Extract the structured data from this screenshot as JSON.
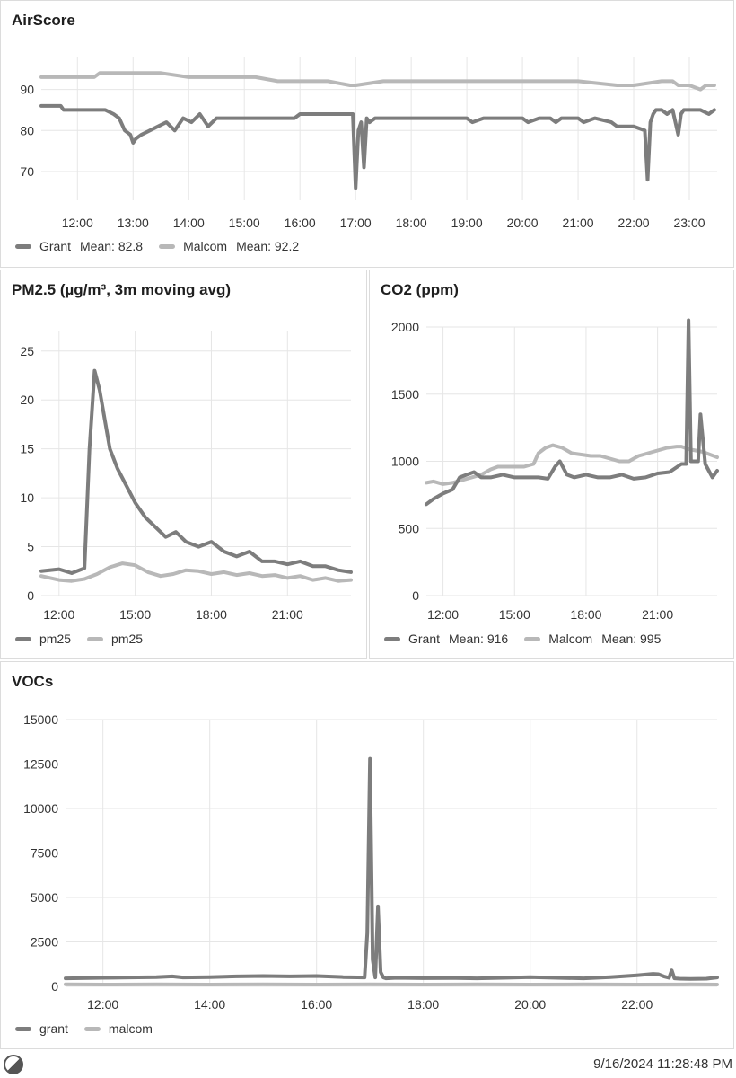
{
  "colors": {
    "dark": "#7d7d7d",
    "light": "#b8b8b8",
    "grid": "#e6e6e6",
    "text": "#333333"
  },
  "footer": {
    "timestamp": "9/16/2024 11:28:48 PM",
    "logo_icon": "half-circle-logo-icon"
  },
  "chart_data": [
    {
      "id": "air",
      "type": "line",
      "title": "AirScore",
      "x_ticks": [
        "12:00",
        "13:00",
        "14:00",
        "15:00",
        "16:00",
        "17:00",
        "18:00",
        "19:00",
        "20:00",
        "21:00",
        "22:00",
        "23:00"
      ],
      "y_ticks": [
        "70",
        "80",
        "90"
      ],
      "xlim": [
        11.35,
        23.5
      ],
      "ylim": [
        63,
        98
      ],
      "grid": true,
      "legend_position": "bottom",
      "legend": [
        {
          "name": "Grant",
          "mean": "Mean: 82.8"
        },
        {
          "name": "Malcom",
          "mean": "Mean: 92.2"
        }
      ],
      "series": [
        {
          "name": "Grant",
          "color": "#7d7d7d",
          "x": [
            11.35,
            11.7,
            11.75,
            12.5,
            12.65,
            12.75,
            12.85,
            12.95,
            13.0,
            13.05,
            13.15,
            13.3,
            13.45,
            13.6,
            13.75,
            13.9,
            14.05,
            14.2,
            14.35,
            14.5,
            14.6,
            15.2,
            15.9,
            16.0,
            16.8,
            16.95,
            17.0,
            17.05,
            17.1,
            17.15,
            17.2,
            17.25,
            17.35,
            17.5,
            17.8,
            19.0,
            19.1,
            19.3,
            20.0,
            20.1,
            20.3,
            20.5,
            20.6,
            20.7,
            21.0,
            21.1,
            21.3,
            21.6,
            21.7,
            22.0,
            22.2,
            22.25,
            22.3,
            22.35,
            22.4,
            22.5,
            22.6,
            22.7,
            22.8,
            22.85,
            22.9,
            23.0,
            23.2,
            23.35,
            23.45
          ],
          "values": [
            86,
            86,
            85,
            85,
            84,
            83,
            80,
            79,
            77,
            78,
            79,
            80,
            81,
            82,
            80,
            83,
            82,
            84,
            81,
            83,
            83,
            83,
            83,
            84,
            84,
            84,
            66,
            80,
            82,
            71,
            83,
            82,
            83,
            83,
            83,
            83,
            82,
            83,
            83,
            82,
            83,
            83,
            82,
            83,
            83,
            82,
            83,
            82,
            81,
            81,
            80,
            68,
            82,
            84,
            85,
            85,
            84,
            85,
            79,
            84,
            85,
            85,
            85,
            84,
            85
          ]
        },
        {
          "name": "Malcom",
          "color": "#b8b8b8",
          "x": [
            11.35,
            12.0,
            12.3,
            12.4,
            12.6,
            13.0,
            13.5,
            14.0,
            14.5,
            15.0,
            15.2,
            15.6,
            16.0,
            16.5,
            16.9,
            17.0,
            17.5,
            18.0,
            19.0,
            20.0,
            21.0,
            21.7,
            22.0,
            22.5,
            22.6,
            22.7,
            22.8,
            22.9,
            23.0,
            23.2,
            23.3,
            23.45
          ],
          "values": [
            93,
            93,
            93,
            94,
            94,
            94,
            94,
            93,
            93,
            93,
            93,
            92,
            92,
            92,
            91,
            91,
            92,
            92,
            92,
            92,
            92,
            91,
            91,
            92,
            92,
            92,
            91,
            91,
            91,
            90,
            91,
            91
          ]
        }
      ]
    },
    {
      "id": "pm",
      "type": "line",
      "title": "PM2.5 (µg/m³, 3m moving avg)",
      "x_ticks": [
        "12:00",
        "15:00",
        "18:00",
        "21:00"
      ],
      "y_ticks": [
        "0",
        "5",
        "10",
        "15",
        "20",
        "25"
      ],
      "xlim": [
        11.3,
        23.5
      ],
      "ylim": [
        0,
        27
      ],
      "grid": true,
      "legend_position": "bottom",
      "legend": [
        {
          "name": "pm25"
        },
        {
          "name": "pm25"
        }
      ],
      "series": [
        {
          "name": "pm25",
          "color": "#7d7d7d",
          "x": [
            11.3,
            12.0,
            12.5,
            13.0,
            13.2,
            13.4,
            13.6,
            13.8,
            14.0,
            14.3,
            14.6,
            15.0,
            15.4,
            15.8,
            16.2,
            16.6,
            17.0,
            17.5,
            18.0,
            18.5,
            19.0,
            19.5,
            20.0,
            20.5,
            21.0,
            21.5,
            22.0,
            22.5,
            23.0,
            23.5
          ],
          "values": [
            2.5,
            2.7,
            2.3,
            2.8,
            15,
            23,
            21,
            18,
            15,
            13,
            11.5,
            9.5,
            8,
            7,
            6,
            6.5,
            5.5,
            5,
            5.5,
            4.5,
            4,
            4.5,
            3.5,
            3.5,
            3.2,
            3.5,
            3,
            3,
            2.6,
            2.4
          ]
        },
        {
          "name": "pm25",
          "color": "#b8b8b8",
          "x": [
            11.3,
            12.0,
            12.5,
            13.0,
            13.5,
            14.0,
            14.5,
            15.0,
            15.5,
            16.0,
            16.5,
            17.0,
            17.5,
            18.0,
            18.5,
            19.0,
            19.5,
            20.0,
            20.5,
            21.0,
            21.5,
            22.0,
            22.5,
            23.0,
            23.5
          ],
          "values": [
            2,
            1.6,
            1.5,
            1.7,
            2.2,
            2.9,
            3.3,
            3.1,
            2.4,
            2,
            2.2,
            2.6,
            2.5,
            2.2,
            2.4,
            2.1,
            2.3,
            2,
            2.1,
            1.8,
            2,
            1.6,
            1.8,
            1.5,
            1.6
          ]
        }
      ]
    },
    {
      "id": "co2",
      "type": "line",
      "title": "CO2 (ppm)",
      "x_ticks": [
        "12:00",
        "15:00",
        "18:00",
        "21:00"
      ],
      "y_ticks": [
        "0",
        "500",
        "1000",
        "1500",
        "2000"
      ],
      "xlim": [
        11.3,
        23.5
      ],
      "ylim": [
        0,
        2000
      ],
      "grid": true,
      "legend_position": "bottom",
      "legend": [
        {
          "name": "Grant",
          "mean": "Mean: 916"
        },
        {
          "name": "Malcom",
          "mean": "Mean: 995"
        }
      ],
      "series": [
        {
          "name": "Grant",
          "color": "#7d7d7d",
          "x": [
            11.3,
            11.6,
            12.0,
            12.4,
            12.7,
            13.0,
            13.3,
            13.6,
            14.0,
            14.5,
            15.0,
            15.5,
            16.0,
            16.4,
            16.7,
            16.9,
            17.2,
            17.5,
            18.0,
            18.5,
            19.0,
            19.5,
            20.0,
            20.5,
            21.0,
            21.5,
            22.0,
            22.2,
            22.3,
            22.4,
            22.5,
            22.6,
            22.7,
            22.8,
            23.0,
            23.3,
            23.5
          ],
          "values": [
            680,
            720,
            760,
            790,
            880,
            900,
            920,
            880,
            880,
            900,
            880,
            880,
            880,
            870,
            960,
            1000,
            900,
            880,
            900,
            880,
            880,
            900,
            870,
            880,
            910,
            920,
            980,
            980,
            2050,
            1000,
            1000,
            1000,
            1000,
            1350,
            980,
            880,
            930
          ]
        },
        {
          "name": "Malcom",
          "color": "#b8b8b8",
          "x": [
            11.3,
            11.6,
            12.0,
            12.4,
            12.8,
            13.2,
            13.6,
            14.0,
            14.3,
            14.6,
            15.0,
            15.4,
            15.8,
            16.0,
            16.3,
            16.6,
            17.0,
            17.4,
            17.8,
            18.2,
            18.6,
            19.0,
            19.4,
            19.8,
            20.2,
            20.6,
            21.0,
            21.4,
            21.8,
            22.0,
            22.3,
            22.6,
            22.9,
            23.2,
            23.5
          ],
          "values": [
            840,
            850,
            830,
            840,
            860,
            880,
            900,
            940,
            960,
            960,
            960,
            960,
            980,
            1060,
            1100,
            1120,
            1100,
            1060,
            1050,
            1040,
            1040,
            1020,
            1000,
            1000,
            1040,
            1060,
            1080,
            1100,
            1110,
            1110,
            1090,
            1080,
            1070,
            1050,
            1030
          ]
        }
      ]
    },
    {
      "id": "voc",
      "type": "line",
      "title": "VOCs",
      "x_ticks": [
        "12:00",
        "14:00",
        "16:00",
        "18:00",
        "20:00",
        "22:00"
      ],
      "y_ticks": [
        "0",
        "2500",
        "5000",
        "7500",
        "10000",
        "12500",
        "15000"
      ],
      "xlim": [
        11.3,
        23.5
      ],
      "ylim": [
        0,
        15000
      ],
      "grid": true,
      "legend_position": "bottom",
      "legend": [
        {
          "name": "grant"
        },
        {
          "name": "malcom"
        }
      ],
      "series": [
        {
          "name": "grant",
          "color": "#7d7d7d",
          "x": [
            11.3,
            12.0,
            12.5,
            13.0,
            13.3,
            13.5,
            14.0,
            14.5,
            15.0,
            15.5,
            16.0,
            16.5,
            16.9,
            16.95,
            17.0,
            17.05,
            17.1,
            17.15,
            17.2,
            17.25,
            17.3,
            17.5,
            18.0,
            18.5,
            19.0,
            19.5,
            20.0,
            20.5,
            21.0,
            21.5,
            22.0,
            22.3,
            22.4,
            22.5,
            22.6,
            22.65,
            22.7,
            22.8,
            23.0,
            23.3,
            23.5
          ],
          "values": [
            450,
            480,
            500,
            520,
            560,
            500,
            520,
            560,
            580,
            560,
            580,
            520,
            500,
            3000,
            12800,
            1500,
            500,
            4500,
            800,
            500,
            450,
            480,
            460,
            470,
            450,
            480,
            520,
            480,
            450,
            520,
            620,
            700,
            680,
            560,
            480,
            900,
            450,
            430,
            420,
            430,
            500
          ]
        },
        {
          "name": "malcom",
          "color": "#b8b8b8",
          "x": [
            11.3,
            12.0,
            13.0,
            14.0,
            15.0,
            16.0,
            17.0,
            18.0,
            19.0,
            20.0,
            21.0,
            22.0,
            23.0,
            23.5
          ],
          "values": [
            110,
            100,
            110,
            100,
            110,
            100,
            110,
            100,
            110,
            100,
            110,
            100,
            110,
            100
          ]
        }
      ]
    }
  ]
}
